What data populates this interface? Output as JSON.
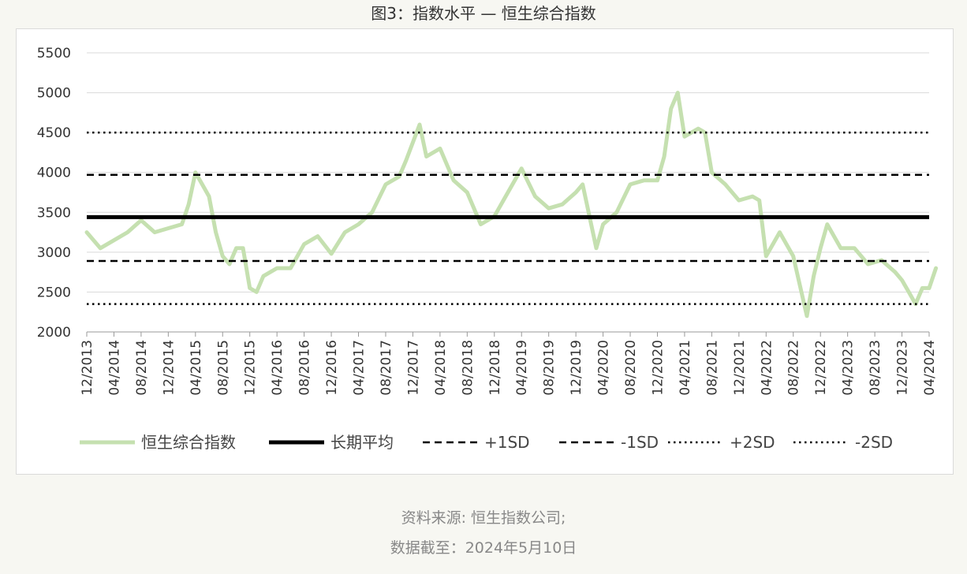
{
  "page": {
    "title": "图3：指数水平 — 恒生综合指数",
    "source_line1": "资料来源: 恒生指数公司;",
    "source_line2": "数据截至：2024年5月10日"
  },
  "colors": {
    "index_line": "#c5e0b0",
    "mean_line": "#000000",
    "sd_lines": "#000000",
    "grid": "#d9d9d9"
  },
  "chart_data": {
    "type": "line",
    "title": "指数水平 — 恒生综合指数",
    "xlabel": "",
    "ylabel": "",
    "ylim": [
      2000,
      5500
    ],
    "yticks": [
      2000,
      2500,
      3000,
      3500,
      4000,
      4500,
      5000,
      5500
    ],
    "xlim": [
      "12/2013",
      "04/2024"
    ],
    "x_tick_labels": [
      "12/2013",
      "04/2014",
      "08/2014",
      "12/2014",
      "04/2015",
      "08/2015",
      "12/2015",
      "04/2016",
      "08/2016",
      "12/2016",
      "04/2017",
      "08/2017",
      "12/2017",
      "04/2018",
      "08/2018",
      "12/2018",
      "04/2019",
      "08/2019",
      "12/2019",
      "04/2020",
      "08/2020",
      "12/2020",
      "04/2021",
      "08/2021",
      "12/2021",
      "04/2022",
      "08/2022",
      "12/2022",
      "04/2023",
      "08/2023",
      "12/2023",
      "04/2024"
    ],
    "grid": "horizontal",
    "legend_position": "bottom",
    "series": [
      {
        "name": "恒生综合指数",
        "style": "solid-thick",
        "x": [
          "12/2013",
          "02/2014",
          "04/2014",
          "06/2014",
          "08/2014",
          "10/2014",
          "12/2014",
          "02/2015",
          "03/2015",
          "04/2015",
          "05/2015",
          "06/2015",
          "07/2015",
          "08/2015",
          "09/2015",
          "10/2015",
          "11/2015",
          "12/2015",
          "01/2016",
          "02/2016",
          "04/2016",
          "06/2016",
          "08/2016",
          "10/2016",
          "12/2016",
          "02/2017",
          "04/2017",
          "06/2017",
          "08/2017",
          "10/2017",
          "11/2017",
          "01/2018",
          "02/2018",
          "04/2018",
          "06/2018",
          "08/2018",
          "10/2018",
          "12/2018",
          "02/2019",
          "04/2019",
          "06/2019",
          "08/2019",
          "10/2019",
          "12/2019",
          "01/2020",
          "03/2020",
          "04/2020",
          "06/2020",
          "08/2020",
          "10/2020",
          "12/2020",
          "01/2021",
          "02/2021",
          "03/2021",
          "04/2021",
          "06/2021",
          "07/2021",
          "08/2021",
          "10/2021",
          "12/2021",
          "02/2022",
          "03/2022",
          "04/2022",
          "06/2022",
          "08/2022",
          "10/2022",
          "11/2022",
          "12/2022",
          "01/2023",
          "03/2023",
          "05/2023",
          "07/2023",
          "09/2023",
          "11/2023",
          "12/2023",
          "01/2024",
          "02/2024",
          "03/2024",
          "04/2024",
          "05/2024"
        ],
        "values": [
          3250,
          3050,
          3150,
          3250,
          3400,
          3250,
          3300,
          3350,
          3600,
          4000,
          3850,
          3700,
          3250,
          2950,
          2850,
          3050,
          3050,
          2550,
          2500,
          2700,
          2800,
          2800,
          3100,
          3200,
          2980,
          3250,
          3350,
          3500,
          3850,
          3950,
          4150,
          4600,
          4200,
          4300,
          3900,
          3750,
          3350,
          3450,
          3750,
          4050,
          3700,
          3550,
          3600,
          3750,
          3850,
          3050,
          3350,
          3500,
          3850,
          3900,
          3900,
          4200,
          4800,
          5000,
          4450,
          4550,
          4500,
          4000,
          3850,
          3650,
          3700,
          3650,
          2950,
          3250,
          2950,
          2200,
          2700,
          3050,
          3350,
          3050,
          3050,
          2850,
          2900,
          2750,
          2650,
          2500,
          2350,
          2550,
          2550,
          2800
        ]
      },
      {
        "name": "长期平均",
        "style": "solid-black",
        "value": 3440
      },
      {
        "name": "+1SD",
        "style": "dashed",
        "value": 3970
      },
      {
        "name": "-1SD",
        "style": "dashed",
        "value": 2890
      },
      {
        "name": "+2SD",
        "style": "dotted",
        "value": 4500
      },
      {
        "name": "-2SD",
        "style": "dotted",
        "value": 2350
      }
    ]
  }
}
